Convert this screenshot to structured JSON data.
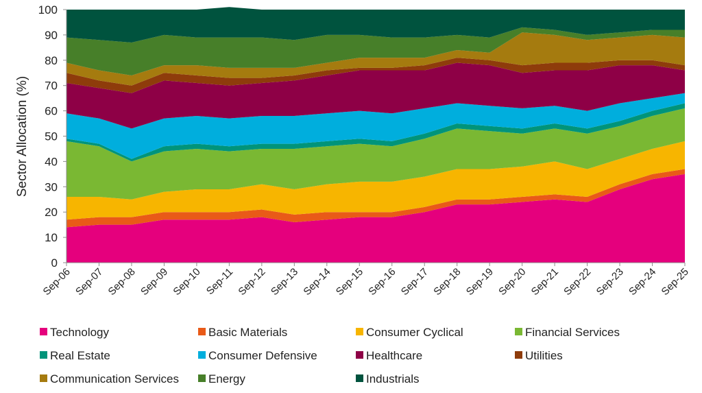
{
  "chart_data": {
    "type": "area",
    "stacked": true,
    "ylabel": "Sector Allocation (%)",
    "xlabel": "",
    "ylim": [
      0,
      100
    ],
    "yticks": [
      0,
      10,
      20,
      30,
      40,
      50,
      60,
      70,
      80,
      90,
      100
    ],
    "grid": false,
    "legend_position": "bottom",
    "categories": [
      "Sep-06",
      "Sep-07",
      "Sep-08",
      "Sep-09",
      "Sep-10",
      "Sep-11",
      "Sep-12",
      "Sep-13",
      "Sep-14",
      "Sep-15",
      "Sep-16",
      "Sep-17",
      "Sep-18",
      "Sep-19",
      "Sep-20",
      "Sep-21",
      "Sep-22",
      "Sep-23",
      "Sep-24",
      "Sep-25"
    ],
    "series": [
      {
        "name": "Technology",
        "color": "#E5007D",
        "values": [
          14,
          15,
          15,
          17,
          17,
          17,
          18,
          16,
          17,
          18,
          18,
          20,
          23,
          23,
          24,
          25,
          24,
          29,
          33,
          35
        ]
      },
      {
        "name": "Basic Materials",
        "color": "#E95A18",
        "values": [
          3,
          3,
          3,
          3,
          3,
          3,
          3,
          3,
          3,
          2,
          2,
          2,
          2,
          2,
          2,
          2,
          2,
          2,
          2,
          2
        ]
      },
      {
        "name": "Consumer Cyclical",
        "color": "#F7B500",
        "values": [
          9,
          8,
          7,
          8,
          9,
          9,
          10,
          10,
          11,
          12,
          12,
          12,
          12,
          12,
          12,
          13,
          11,
          10,
          10,
          11
        ]
      },
      {
        "name": "Financial Services",
        "color": "#7AB833",
        "values": [
          22,
          20,
          15,
          16,
          16,
          15,
          14,
          16,
          15,
          15,
          14,
          15,
          16,
          15,
          13,
          13,
          14,
          13,
          13,
          13
        ]
      },
      {
        "name": "Real Estate",
        "color": "#00947A",
        "values": [
          1,
          1,
          1,
          2,
          2,
          2,
          2,
          2,
          2,
          2,
          2,
          2,
          2,
          2,
          2,
          2,
          2,
          2,
          2,
          2
        ]
      },
      {
        "name": "Consumer Defensive",
        "color": "#00AEDD",
        "values": [
          10,
          10,
          12,
          11,
          11,
          11,
          11,
          11,
          11,
          11,
          11,
          10,
          8,
          8,
          8,
          7,
          7,
          7,
          5,
          4
        ]
      },
      {
        "name": "Healthcare",
        "color": "#8E0046",
        "values": [
          12,
          12,
          14,
          15,
          13,
          13,
          13,
          14,
          15,
          16,
          17,
          15,
          16,
          16,
          14,
          14,
          16,
          15,
          13,
          9
        ]
      },
      {
        "name": "Utilities",
        "color": "#8E3C0B",
        "values": [
          4,
          3,
          3,
          3,
          3,
          3,
          2,
          2,
          2,
          1,
          1,
          2,
          2,
          2,
          3,
          3,
          3,
          2,
          2,
          2
        ]
      },
      {
        "name": "Communication Services",
        "color": "#A57B0F",
        "values": [
          4,
          4,
          4,
          3,
          4,
          4,
          4,
          3,
          3,
          4,
          4,
          3,
          3,
          3,
          13,
          11,
          9,
          9,
          10,
          11
        ]
      },
      {
        "name": "Energy",
        "color": "#477F29",
        "values": [
          10,
          12,
          13,
          12,
          11,
          12,
          12,
          11,
          11,
          9,
          8,
          8,
          6,
          6,
          2,
          2,
          2,
          2,
          2,
          3
        ]
      },
      {
        "name": "Industrials",
        "color": "#00533E",
        "values": [
          11,
          12,
          13,
          10,
          11,
          12,
          11,
          12,
          10,
          10,
          11,
          11,
          10,
          11,
          7,
          8,
          10,
          9,
          8,
          8
        ]
      }
    ]
  }
}
